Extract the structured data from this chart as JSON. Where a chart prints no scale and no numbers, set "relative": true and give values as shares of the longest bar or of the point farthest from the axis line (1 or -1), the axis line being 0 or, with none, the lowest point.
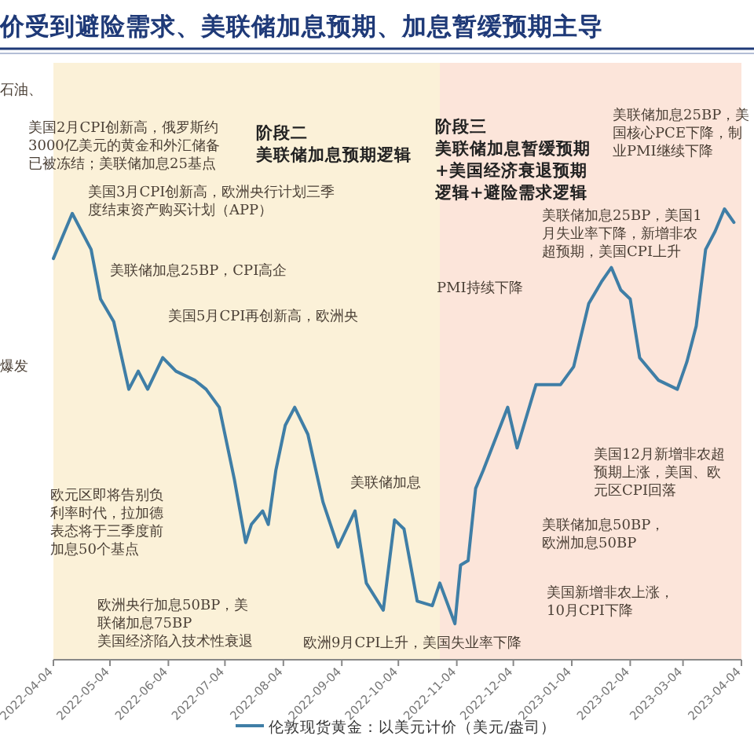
{
  "chart_data": {
    "type": "line",
    "title": "价受到避险需求、美联储加息预期、加息暂缓预期主导",
    "relative": true,
    "legend": "bottom",
    "x": [
      "2022-04-04",
      "2022-04-14",
      "2022-04-24",
      "2022-04-29",
      "2022-05-06",
      "2022-05-14",
      "2022-05-19",
      "2022-05-24",
      "2022-06-01",
      "2022-06-08",
      "2022-06-18",
      "2022-06-24",
      "2022-07-01",
      "2022-07-09",
      "2022-07-15",
      "2022-07-18",
      "2022-07-24",
      "2022-07-27",
      "2022-07-31",
      "2022-08-05",
      "2022-08-10",
      "2022-08-17",
      "2022-08-25",
      "2022-09-02",
      "2022-09-11",
      "2022-09-17",
      "2022-09-26",
      "2022-10-02",
      "2022-10-07",
      "2022-10-14",
      "2022-10-22",
      "2022-10-26",
      "2022-11-03",
      "2022-11-06",
      "2022-11-10",
      "2022-11-14",
      "2022-11-18",
      "2022-12-01",
      "2022-12-06",
      "2022-12-16",
      "2022-12-29",
      "2023-01-05",
      "2023-01-13",
      "2023-01-20",
      "2023-01-25",
      "2023-01-30",
      "2023-02-04",
      "2023-02-09",
      "2023-02-19",
      "2023-03-01",
      "2023-03-06",
      "2023-03-11",
      "2023-03-16",
      "2023-03-21",
      "2023-03-26",
      "2023-03-31"
    ],
    "series": [
      {
        "name": "伦敦现货黄金：以美元计价（美元/盎司）",
        "color": "#3f7ea6",
        "values": [
          0.89,
          0.99,
          0.91,
          0.8,
          0.75,
          0.6,
          0.64,
          0.6,
          0.67,
          0.64,
          0.62,
          0.6,
          0.56,
          0.4,
          0.26,
          0.3,
          0.33,
          0.3,
          0.42,
          0.52,
          0.56,
          0.5,
          0.35,
          0.25,
          0.33,
          0.17,
          0.11,
          0.31,
          0.29,
          0.13,
          0.12,
          0.17,
          0.08,
          0.21,
          0.22,
          0.38,
          0.42,
          0.56,
          0.47,
          0.61,
          0.61,
          0.65,
          0.79,
          0.84,
          0.87,
          0.82,
          0.8,
          0.67,
          0.62,
          0.6,
          0.66,
          0.74,
          0.91,
          0.95,
          1,
          0.97
        ]
      }
    ],
    "xlim": [
      "2022-04-04",
      "2023-04-04"
    ],
    "xticks": [
      "2022-04-04",
      "2022-05-04",
      "2022-06-04",
      "2022-07-04",
      "2022-08-04",
      "2022-09-04",
      "2022-10-04",
      "2022-11-04",
      "2022-12-04",
      "2023-01-04",
      "2023-02-04",
      "2023-03-04",
      "2023-04-04"
    ],
    "bands": [
      {
        "axis": "x",
        "from": "2022-04-04",
        "to": "2022-10-26",
        "label": "阶段二美联储加息预期逻辑",
        "color": "#fbf1d8"
      },
      {
        "axis": "x",
        "from": "2022-10-26",
        "to": "2023-04-04",
        "label": "阶段三美联储加息暂缓预期+美国经济衰退预期逻辑+避险需求逻辑",
        "color": "#fce5da"
      }
    ],
    "annotations": [
      "石油、",
      "美国2月CPI创新高，俄罗斯约3000亿美元的黄金和外汇储备已被冻结；美联储加息25基点",
      "美国3月CPI创新高，欧洲央行计划三季度结束资产购买计划（APP）",
      "美联储加息25BP，CPI高企",
      "美国5月CPI再创新高，欧洲央",
      "爆发",
      "欧元区即将告别负利率时代，拉加德表态将于三季度前加息50个基点",
      "欧洲央行加息50BP，美联储加息75BP美国经济陷入技术性衰退",
      "欧洲9月CPI上升，美国失业率下降",
      "美联储加息",
      "PMI持续下降",
      "美联储加息25BP，美国1月失业率下降，新增非农超预期，美国CPI上升",
      "美联储加息25BP，美国核心PCE下降，制业PMI继续下降",
      "美国12月新增非农超预期上涨，美国、欧元区CPI回落",
      "美联储加息50BP，欧洲加息50BP",
      "美国新增非农上涨，10月CPI下降"
    ]
  }
}
